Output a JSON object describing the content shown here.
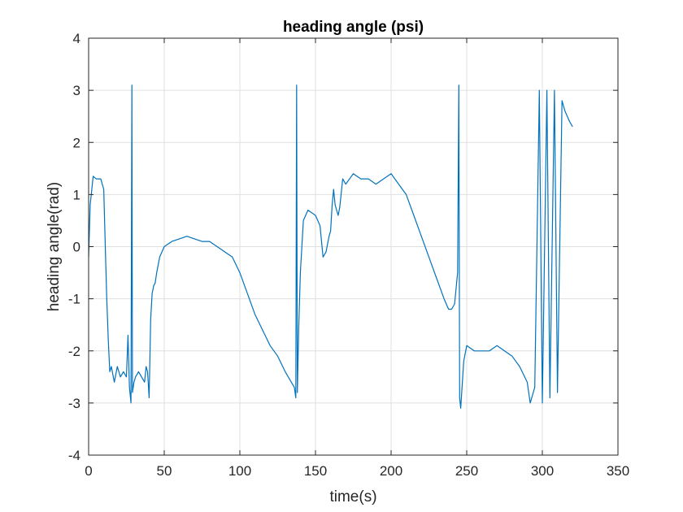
{
  "chart_data": {
    "type": "line",
    "title": "heading angle (psi)",
    "xlabel": "time(s)",
    "ylabel": "heading angle(rad)",
    "xlim": [
      0,
      350
    ],
    "ylim": [
      -4,
      4
    ],
    "x_ticks": [
      0,
      50,
      100,
      150,
      200,
      250,
      300,
      350
    ],
    "y_ticks": [
      -4,
      -3,
      -2,
      -1,
      0,
      1,
      2,
      3,
      4
    ],
    "grid": true,
    "line_color": "#0072BD",
    "series": [
      {
        "x": [
          0,
          1,
          3,
          5,
          8,
          10,
          11,
          12,
          13,
          14,
          15,
          17,
          19,
          21,
          23,
          25,
          26,
          27,
          28,
          28.6,
          29,
          30,
          31,
          33,
          35,
          37,
          38,
          39,
          40,
          41,
          42,
          43,
          44,
          45,
          47,
          50,
          55,
          60,
          65,
          70,
          75,
          80,
          85,
          90,
          95,
          100,
          105,
          110,
          115,
          120,
          125,
          130,
          134,
          136,
          137,
          137.5,
          138,
          139,
          140,
          142,
          145,
          150,
          153,
          155,
          157,
          159,
          160,
          161,
          162,
          163,
          164,
          165,
          166,
          168,
          170,
          175,
          180,
          185,
          190,
          195,
          200,
          205,
          210,
          215,
          220,
          225,
          230,
          235,
          238,
          240,
          242,
          244,
          244.8,
          245.3,
          246,
          248,
          250,
          255,
          260,
          265,
          270,
          275,
          280,
          285,
          290,
          292,
          295,
          298,
          300,
          303,
          305,
          308,
          310,
          313,
          315,
          318,
          320
        ],
        "y": [
          -0.2,
          0.8,
          1.35,
          1.3,
          1.3,
          1.1,
          0,
          -1.0,
          -1.8,
          -2.4,
          -2.3,
          -2.6,
          -2.3,
          -2.5,
          -2.4,
          -2.5,
          -1.7,
          -2.7,
          -3.0,
          3.1,
          -2.8,
          -2.6,
          -2.5,
          -2.4,
          -2.5,
          -2.6,
          -2.3,
          -2.4,
          -2.9,
          -1.4,
          -0.9,
          -0.75,
          -0.7,
          -0.5,
          -0.2,
          0.0,
          0.1,
          0.15,
          0.2,
          0.15,
          0.1,
          0.1,
          0.0,
          -0.1,
          -0.2,
          -0.5,
          -0.9,
          -1.3,
          -1.6,
          -1.9,
          -2.1,
          -2.4,
          -2.6,
          -2.7,
          -2.9,
          3.1,
          -2.8,
          -1.5,
          -0.5,
          0.5,
          0.7,
          0.6,
          0.4,
          -0.2,
          -0.1,
          0.2,
          0.3,
          0.8,
          1.1,
          0.8,
          0.7,
          0.6,
          0.75,
          1.3,
          1.2,
          1.4,
          1.3,
          1.3,
          1.2,
          1.3,
          1.4,
          1.2,
          1.0,
          0.6,
          0.2,
          -0.2,
          -0.6,
          -1.0,
          -1.2,
          -1.2,
          -1.1,
          -0.5,
          3.1,
          -2.9,
          -3.1,
          -2.2,
          -1.9,
          -2.0,
          -2.0,
          -2.0,
          -1.9,
          -2.0,
          -2.1,
          -2.3,
          -2.6,
          -3.0,
          -2.7,
          3.0,
          -3.0,
          3.0,
          -2.9,
          3.0,
          -2.8,
          2.8,
          2.6,
          2.4,
          2.3
        ]
      }
    ]
  }
}
